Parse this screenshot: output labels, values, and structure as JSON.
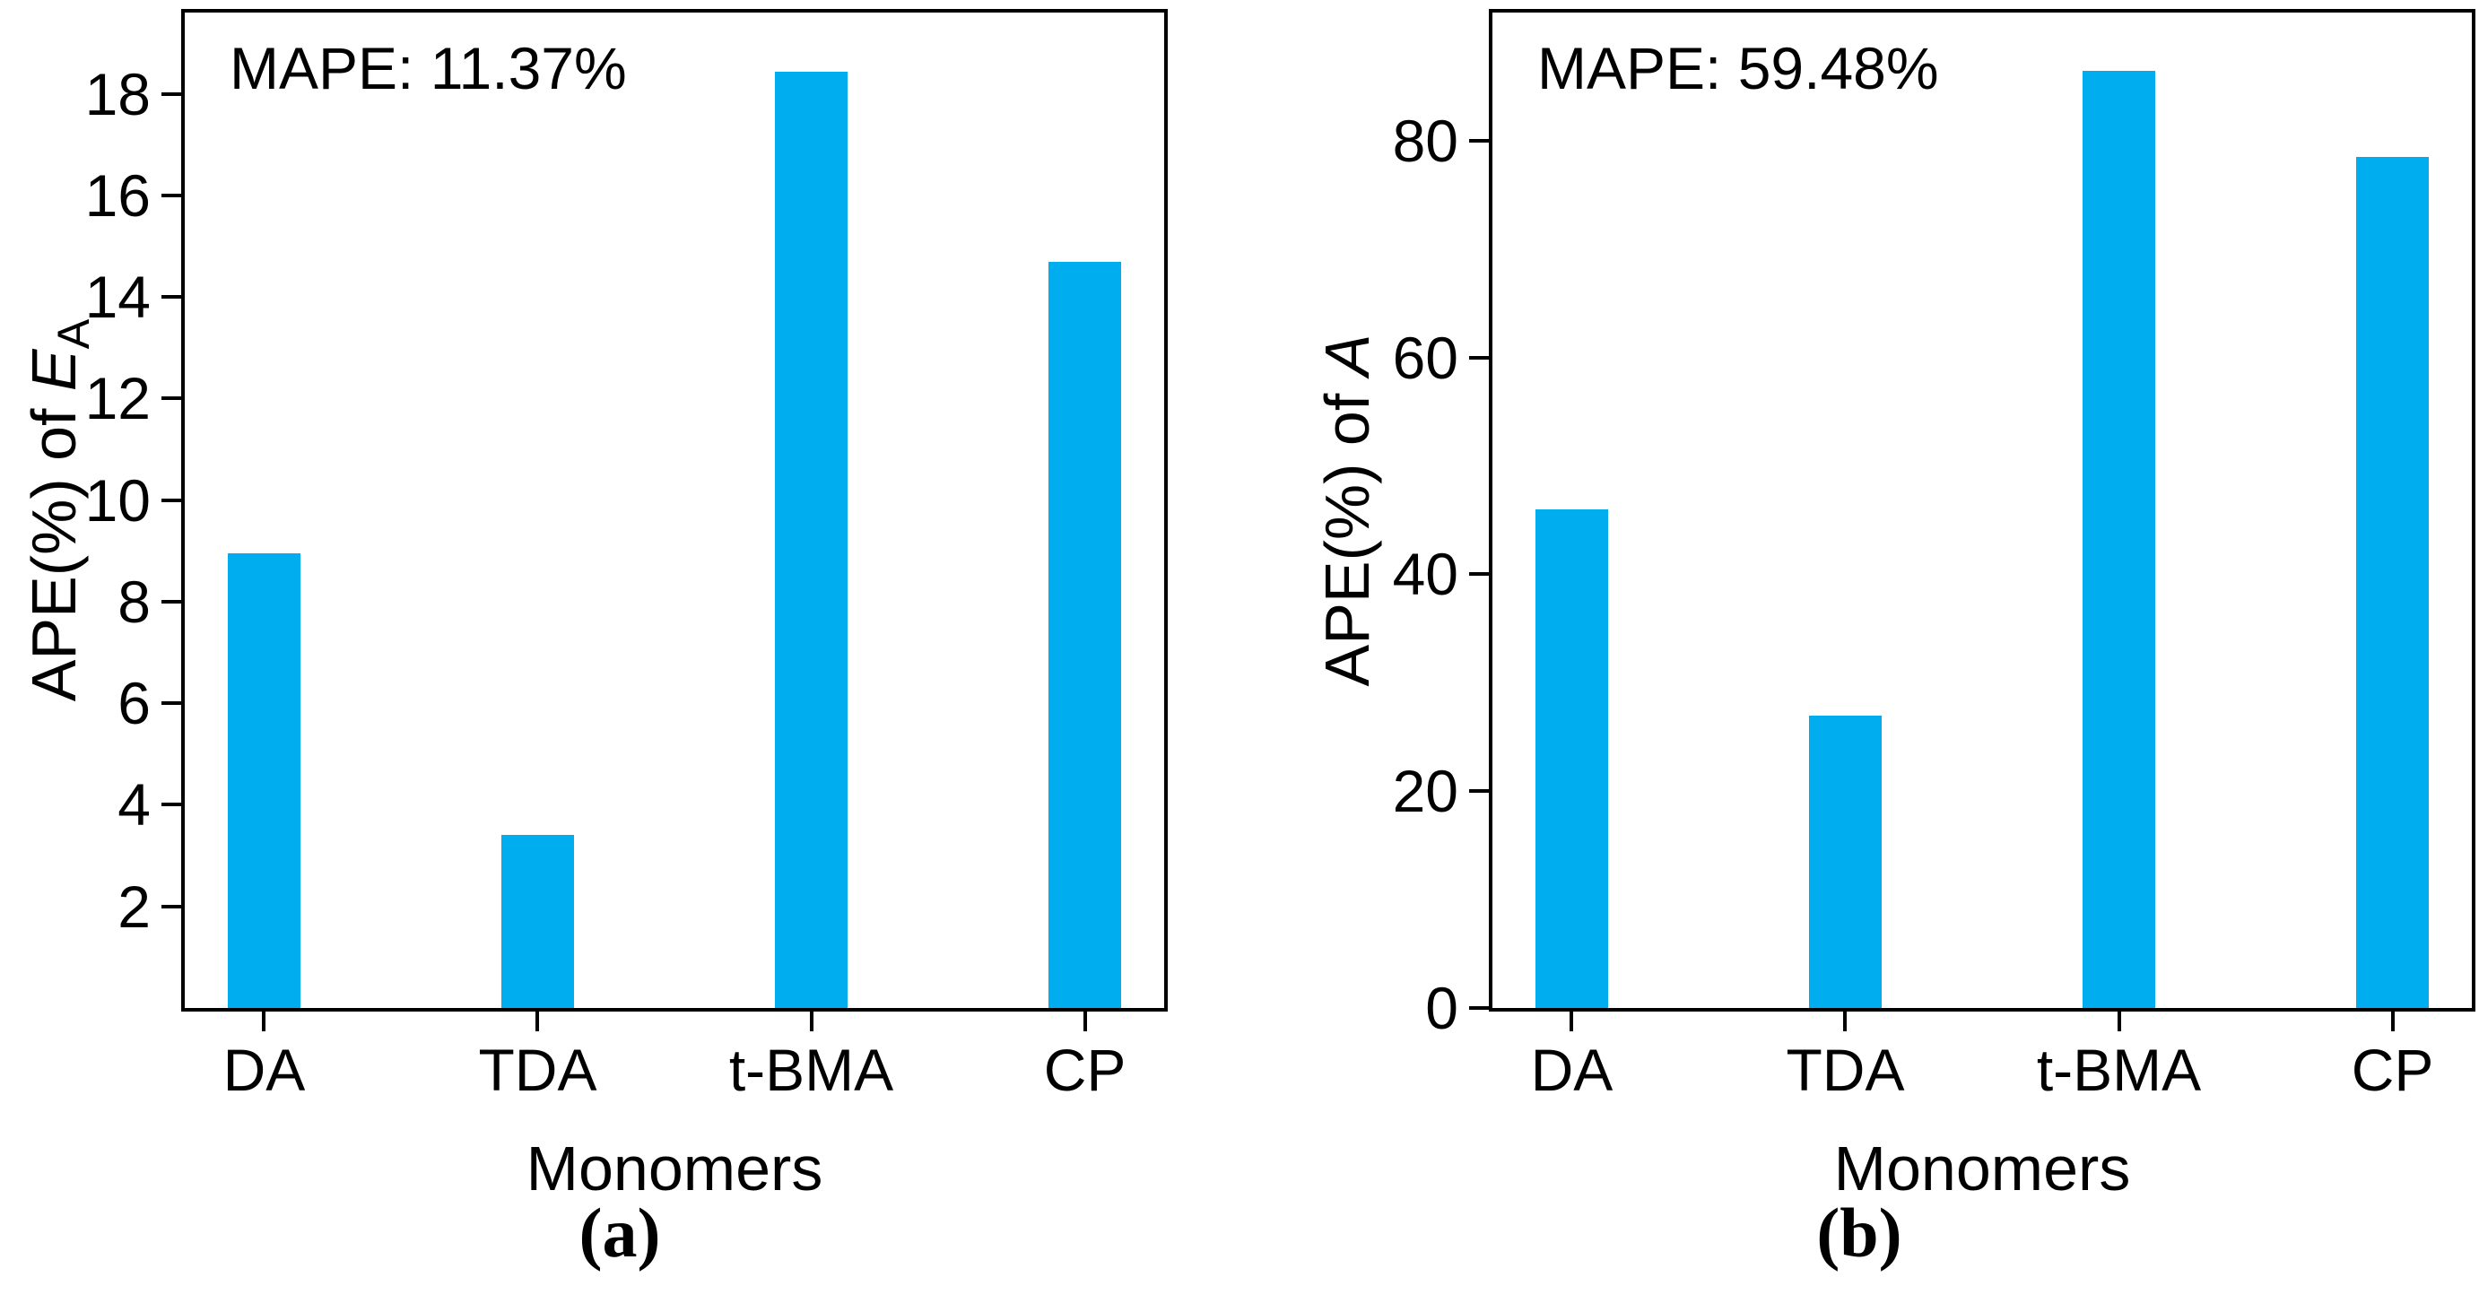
{
  "figure": {
    "background_color": "#ffffff",
    "bar_color": "#00AEEF",
    "axis_color": "#000000",
    "caption_a": "(a)",
    "caption_b": "(b)"
  },
  "chart_data": [
    {
      "type": "bar",
      "panel": "a",
      "annotation": "MAPE: 11.37%",
      "categories": [
        "DA",
        "TDA",
        "t-BMA",
        "CP"
      ],
      "values": [
        8.95,
        3.41,
        18.43,
        14.69
      ],
      "xlabel": "Monomers",
      "ylabel_text": "APE(%) of EA",
      "ylabel_parts": [
        {
          "text": "APE(%) of "
        },
        {
          "text": "E",
          "italic": true
        },
        {
          "text": "A",
          "sub": true
        }
      ],
      "yticks": [
        2,
        4,
        6,
        8,
        10,
        12,
        14,
        16,
        18
      ],
      "ylim": [
        0,
        19.6
      ],
      "grid": false,
      "legend": "none"
    },
    {
      "type": "bar",
      "panel": "b",
      "annotation": "MAPE: 59.48%",
      "categories": [
        "DA",
        "TDA",
        "t-BMA",
        "CP"
      ],
      "values": [
        46.0,
        27.0,
        86.42,
        78.5
      ],
      "xlabel": "Monomers",
      "ylabel_text": "APE(%) of A",
      "ylabel_parts": [
        {
          "text": "APE(%) of "
        },
        {
          "text": "A",
          "italic": true
        }
      ],
      "yticks": [
        0,
        20,
        40,
        60,
        80
      ],
      "ylim": [
        0,
        91.8
      ],
      "grid": false,
      "legend": "none"
    }
  ]
}
